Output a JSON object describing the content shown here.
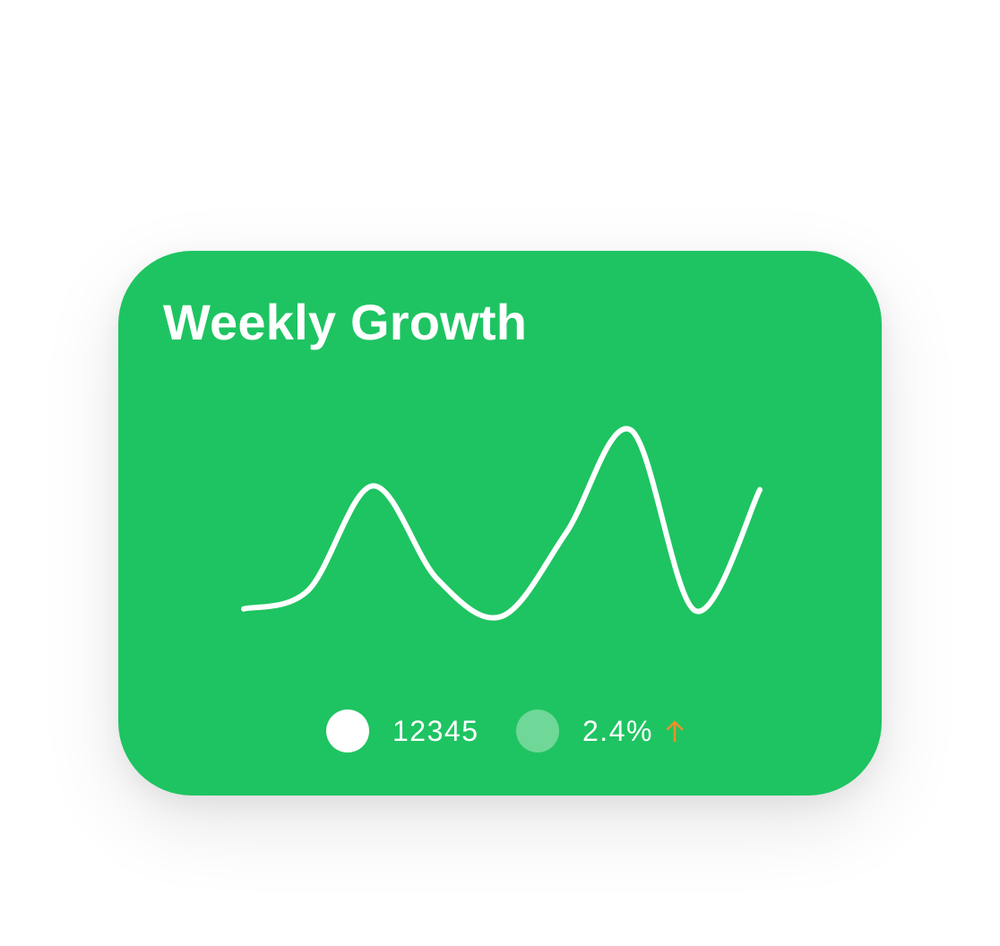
{
  "card": {
    "title": "Weekly Growth",
    "background_color": "#1ec461"
  },
  "legend": {
    "items": [
      {
        "value": "12345",
        "dot_color": "#ffffff"
      },
      {
        "value": "2.4%",
        "dot_color": "#6fd898",
        "trend_icon": "arrow-up-icon",
        "trend_color": "#ee8f2a"
      }
    ]
  },
  "chart_data": {
    "type": "line",
    "series": [
      {
        "values": [
          4,
          14,
          70,
          20,
          0,
          45,
          100,
          3,
          68
        ]
      }
    ],
    "line_color": "#ffffff",
    "grid": false
  }
}
